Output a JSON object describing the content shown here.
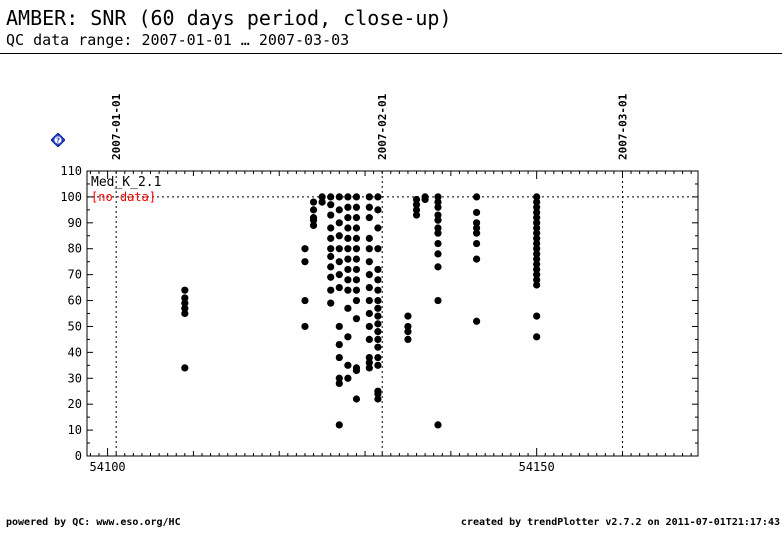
{
  "header": {
    "title": "AMBER: SNR (60 days period, close-up)",
    "subtitle": "QC data range: 2007-01-01 … 2007-03-03"
  },
  "footer": {
    "left": "powered by QC: www.eso.org/HC",
    "right": "created by trendPlotter v2.7.2 on 2011-07-01T21:17:43"
  },
  "help_icon": {
    "name": "help-diamond-icon",
    "label": "?",
    "color": "#1f3fd0"
  },
  "chart_data": {
    "type": "scatter",
    "series_label": "Med_K_2.1",
    "no_data_label": "[no data]",
    "no_data_color": "#ff0000",
    "point_color": "#000000",
    "xlim": [
      54097.6,
      54168.8
    ],
    "ylim": [
      0,
      110
    ],
    "x_ticks": [
      54100,
      54150
    ],
    "y_ticks": [
      0,
      10,
      20,
      30,
      40,
      50,
      60,
      70,
      80,
      90,
      100,
      110
    ],
    "reference_line_y": 100,
    "date_markers": [
      {
        "label": "2007-01-01",
        "x": 54101
      },
      {
        "label": "2007-02-01",
        "x": 54132
      },
      {
        "label": "2007-03-01",
        "x": 54160
      }
    ],
    "points": [
      [
        54109,
        64
      ],
      [
        54109,
        61
      ],
      [
        54109,
        59
      ],
      [
        54109,
        57
      ],
      [
        54109,
        55
      ],
      [
        54109,
        34
      ],
      [
        54123,
        80
      ],
      [
        54123,
        75
      ],
      [
        54123,
        60
      ],
      [
        54123,
        50
      ],
      [
        54124,
        98
      ],
      [
        54124,
        95
      ],
      [
        54124,
        92
      ],
      [
        54124,
        91
      ],
      [
        54124,
        89
      ],
      [
        54125,
        100
      ],
      [
        54125,
        98
      ],
      [
        54126,
        100
      ],
      [
        54126,
        97
      ],
      [
        54126,
        93
      ],
      [
        54126,
        88
      ],
      [
        54126,
        84
      ],
      [
        54126,
        80
      ],
      [
        54126,
        77
      ],
      [
        54126,
        73
      ],
      [
        54126,
        69
      ],
      [
        54126,
        64
      ],
      [
        54126,
        59
      ],
      [
        54127,
        100
      ],
      [
        54127,
        95
      ],
      [
        54127,
        90
      ],
      [
        54127,
        85
      ],
      [
        54127,
        80
      ],
      [
        54127,
        75
      ],
      [
        54127,
        70
      ],
      [
        54127,
        65
      ],
      [
        54127,
        50
      ],
      [
        54127,
        43
      ],
      [
        54127,
        38
      ],
      [
        54127,
        30
      ],
      [
        54127,
        28
      ],
      [
        54127,
        12
      ],
      [
        54128,
        100
      ],
      [
        54128,
        96
      ],
      [
        54128,
        92
      ],
      [
        54128,
        88
      ],
      [
        54128,
        84
      ],
      [
        54128,
        80
      ],
      [
        54128,
        76
      ],
      [
        54128,
        72
      ],
      [
        54128,
        68
      ],
      [
        54128,
        64
      ],
      [
        54128,
        57
      ],
      [
        54128,
        46
      ],
      [
        54128,
        35
      ],
      [
        54128,
        30
      ],
      [
        54129,
        100
      ],
      [
        54129,
        96
      ],
      [
        54129,
        92
      ],
      [
        54129,
        88
      ],
      [
        54129,
        84
      ],
      [
        54129,
        80
      ],
      [
        54129,
        76
      ],
      [
        54129,
        72
      ],
      [
        54129,
        68
      ],
      [
        54129,
        64
      ],
      [
        54129,
        60
      ],
      [
        54129,
        53
      ],
      [
        54129,
        34
      ],
      [
        54129,
        33
      ],
      [
        54129,
        22
      ],
      [
        54130.5,
        100
      ],
      [
        54130.5,
        96
      ],
      [
        54130.5,
        92
      ],
      [
        54130.5,
        84
      ],
      [
        54130.5,
        80
      ],
      [
        54130.5,
        75
      ],
      [
        54130.5,
        70
      ],
      [
        54130.5,
        65
      ],
      [
        54130.5,
        60
      ],
      [
        54130.5,
        55
      ],
      [
        54130.5,
        50
      ],
      [
        54130.5,
        45
      ],
      [
        54130.5,
        38
      ],
      [
        54130.5,
        36
      ],
      [
        54130.5,
        34
      ],
      [
        54131.5,
        100
      ],
      [
        54131.5,
        95
      ],
      [
        54131.5,
        88
      ],
      [
        54131.5,
        80
      ],
      [
        54131.5,
        72
      ],
      [
        54131.5,
        68
      ],
      [
        54131.5,
        64
      ],
      [
        54131.5,
        60
      ],
      [
        54131.5,
        57
      ],
      [
        54131.5,
        54
      ],
      [
        54131.5,
        51
      ],
      [
        54131.5,
        48
      ],
      [
        54131.5,
        45
      ],
      [
        54131.5,
        42
      ],
      [
        54131.5,
        38
      ],
      [
        54131.5,
        35
      ],
      [
        54131.5,
        25
      ],
      [
        54131.5,
        24
      ],
      [
        54131.5,
        22
      ],
      [
        54135,
        54
      ],
      [
        54135,
        50
      ],
      [
        54135,
        48
      ],
      [
        54135,
        45
      ],
      [
        54136,
        99
      ],
      [
        54136,
        97
      ],
      [
        54136,
        95
      ],
      [
        54136,
        93
      ],
      [
        54137,
        100
      ],
      [
        54137,
        99
      ],
      [
        54138.5,
        100
      ],
      [
        54138.5,
        98
      ],
      [
        54138.5,
        96
      ],
      [
        54138.5,
        93
      ],
      [
        54138.5,
        91
      ],
      [
        54138.5,
        88
      ],
      [
        54138.5,
        86
      ],
      [
        54138.5,
        82
      ],
      [
        54138.5,
        78
      ],
      [
        54138.5,
        73
      ],
      [
        54138.5,
        60
      ],
      [
        54138.5,
        12
      ],
      [
        54143,
        100
      ],
      [
        54143,
        94
      ],
      [
        54143,
        90
      ],
      [
        54143,
        88
      ],
      [
        54143,
        86
      ],
      [
        54143,
        82
      ],
      [
        54143,
        76
      ],
      [
        54143,
        52
      ],
      [
        54150,
        100
      ],
      [
        54150,
        98
      ],
      [
        54150,
        96
      ],
      [
        54150,
        94
      ],
      [
        54150,
        92
      ],
      [
        54150,
        90
      ],
      [
        54150,
        88
      ],
      [
        54150,
        86
      ],
      [
        54150,
        84
      ],
      [
        54150,
        82
      ],
      [
        54150,
        80
      ],
      [
        54150,
        78
      ],
      [
        54150,
        76
      ],
      [
        54150,
        74
      ],
      [
        54150,
        72
      ],
      [
        54150,
        70
      ],
      [
        54150,
        68
      ],
      [
        54150,
        66
      ],
      [
        54150,
        54
      ],
      [
        54150,
        46
      ]
    ]
  }
}
